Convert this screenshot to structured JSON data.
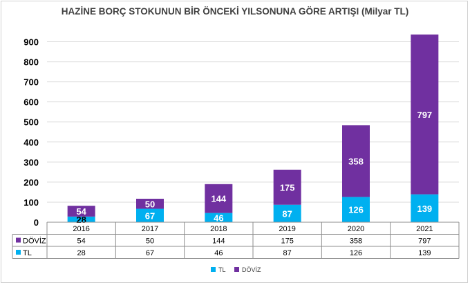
{
  "chart_data": {
    "type": "bar",
    "stacked": true,
    "title": "HAZİNE BORÇ STOKUNUN BİR ÖNCEKİ YILSONUNA GÖRE ARTIŞI (Milyar TL)",
    "categories": [
      "2016",
      "2017",
      "2018",
      "2019",
      "2020",
      "2021"
    ],
    "series": [
      {
        "name": "TL",
        "color": "#00b0f0",
        "values": [
          28,
          67,
          46,
          87,
          126,
          139
        ]
      },
      {
        "name": "DÖVİZ",
        "color": "#7030a0",
        "values": [
          54,
          50,
          144,
          175,
          358,
          797
        ]
      }
    ],
    "y_ticks": [
      "0",
      "100",
      "200",
      "300",
      "400",
      "500",
      "600",
      "700",
      "800",
      "900"
    ],
    "ylim": [
      0,
      950
    ],
    "grid": true,
    "legend": [
      "TL",
      "DÖVİZ"
    ],
    "data_table": true
  }
}
